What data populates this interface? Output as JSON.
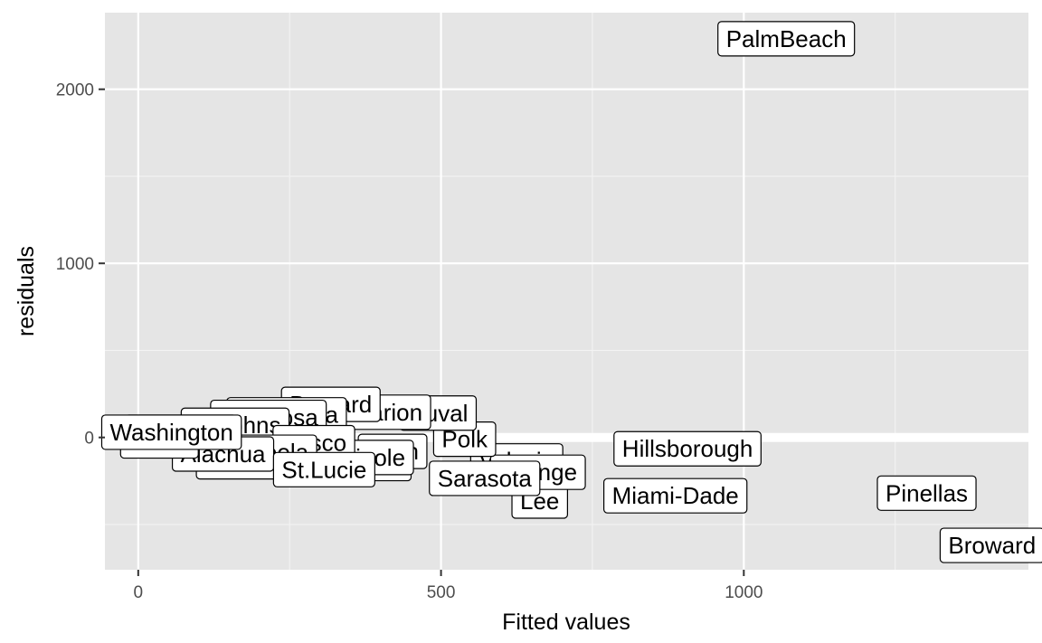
{
  "chart_data": {
    "type": "scatter",
    "title": "",
    "xlabel": "Fitted values",
    "ylabel": "residuals",
    "xlim": [
      -55,
      1470
    ],
    "ylim": [
      -760,
      2440
    ],
    "x_ticks": [
      0,
      500,
      1000
    ],
    "x_minor": [
      250,
      750,
      1250
    ],
    "y_ticks": [
      0,
      1000,
      2000
    ],
    "y_minor": [
      -500,
      500,
      1500
    ],
    "grid": true,
    "hline": {
      "y": 0,
      "color": "#ffffff"
    },
    "points": [
      {
        "label": "PalmBeach",
        "x": 1070,
        "y": 2290
      },
      {
        "label": "Hillsborough",
        "x": 907,
        "y": -65
      },
      {
        "label": "Miami-Dade",
        "x": 887,
        "y": -335
      },
      {
        "label": "Pinellas",
        "x": 1302,
        "y": -320
      },
      {
        "label": "Broward",
        "x": 1410,
        "y": -620
      },
      {
        "label": "Volusia",
        "x": 625,
        "y": -135
      },
      {
        "label": "Lee",
        "x": 663,
        "y": -365
      },
      {
        "label": "Orange",
        "x": 660,
        "y": -200
      },
      {
        "label": "Sarasota",
        "x": 572,
        "y": -235
      },
      {
        "label": "Polk",
        "x": 539,
        "y": -10
      },
      {
        "label": "Duval",
        "x": 495,
        "y": 140
      },
      {
        "label": "Marion",
        "x": 410,
        "y": 145
      },
      {
        "label": "Brevard",
        "x": 318,
        "y": 190
      },
      {
        "label": "Escambia",
        "x": 245,
        "y": 130
      },
      {
        "label": "Okaloosa",
        "x": 215,
        "y": 115
      },
      {
        "label": "St.Johns",
        "x": 160,
        "y": 70
      },
      {
        "label": "Leon",
        "x": 420,
        "y": -80
      },
      {
        "label": "Lake",
        "x": 395,
        "y": -150
      },
      {
        "label": "Seminole",
        "x": 360,
        "y": -115
      },
      {
        "label": "Pasco",
        "x": 290,
        "y": -30
      },
      {
        "label": "Manatee",
        "x": 185,
        "y": -140
      },
      {
        "label": "Osceola",
        "x": 210,
        "y": -85
      },
      {
        "label": "Alachua",
        "x": 140,
        "y": -95
      },
      {
        "label": "Charlotte",
        "x": 70,
        "y": 30
      },
      {
        "label": "Citrus",
        "x": 35,
        "y": -20
      },
      {
        "label": "Washington",
        "x": 55,
        "y": 30
      },
      {
        "label": "St.Lucie",
        "x": 307,
        "y": -185
      }
    ]
  }
}
